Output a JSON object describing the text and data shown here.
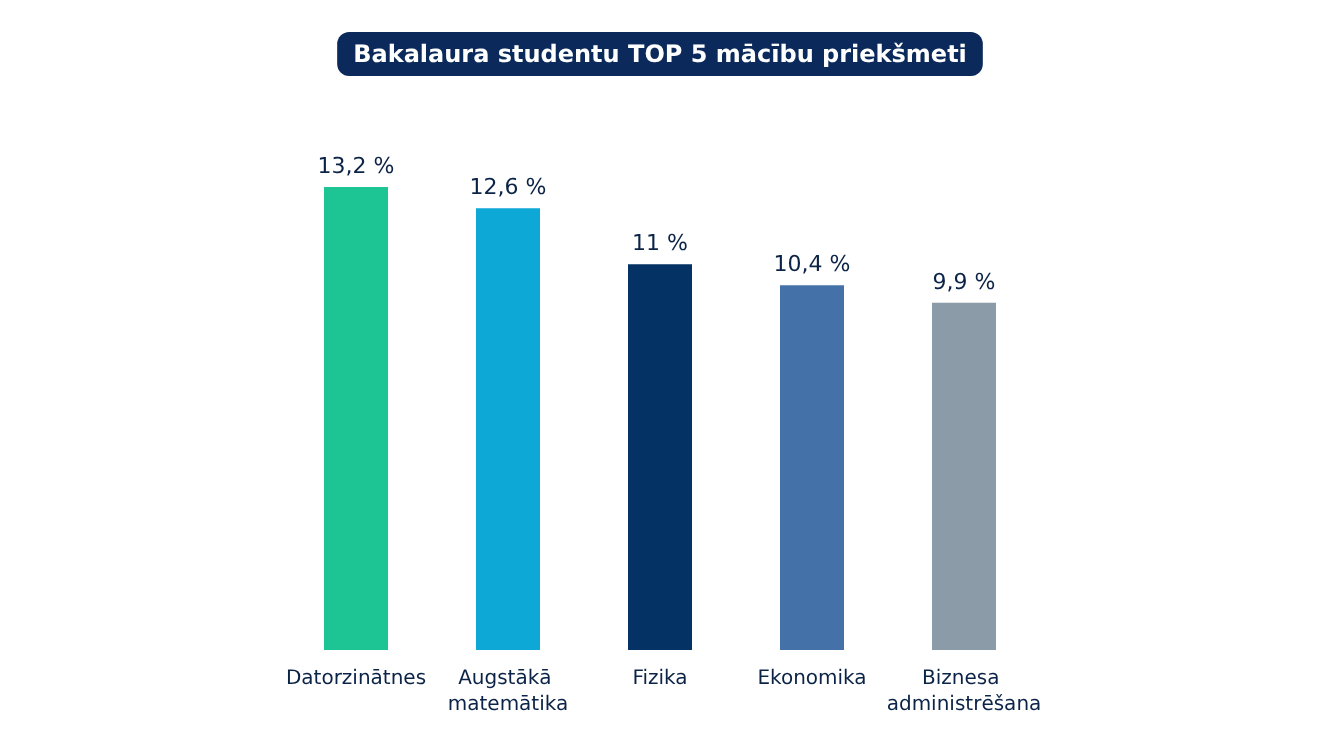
{
  "chart_data": {
    "type": "bar",
    "title": "Bakalaura studentu TOP 5 mācību priekšmeti",
    "categories": [
      "Datorzinātnes",
      "Augstākā matemātika",
      "Fizika",
      "Ekonomika",
      "Biznesa administrēšana"
    ],
    "values": [
      13.2,
      12.6,
      11,
      10.4,
      9.9
    ],
    "colors": [
      "#1dc595",
      "#0ea8d6",
      "#053264",
      "#4472a8",
      "#8b9ca8"
    ],
    "value_labels": [
      "13,2 %",
      "12,6 %",
      "11 %",
      "10,4 %",
      "9,9 %"
    ]
  }
}
